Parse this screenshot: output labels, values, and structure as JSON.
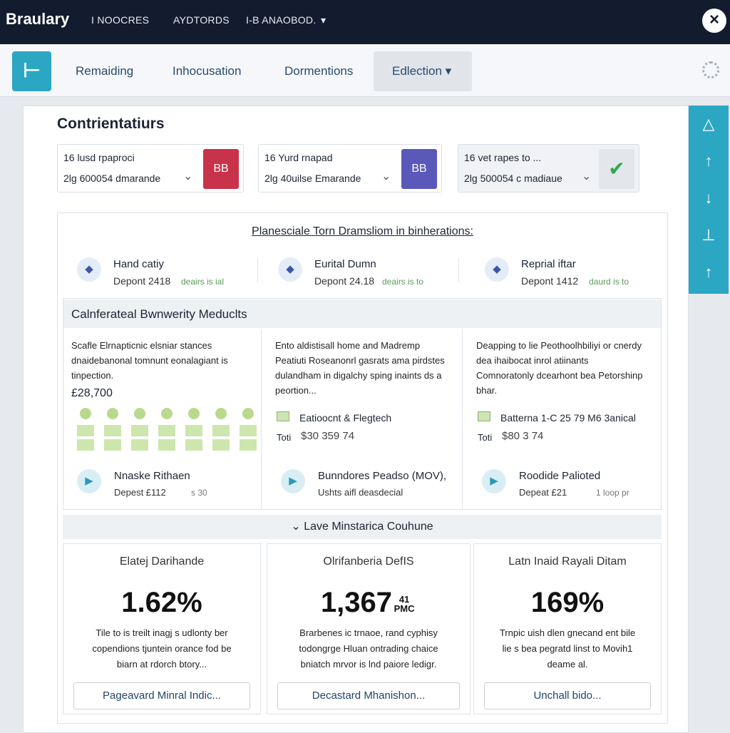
{
  "topbar": {
    "brand": "Braulary",
    "nav": [
      "I NOOCRES",
      "AYDTORDS",
      "I-B ANAOBOD."
    ]
  },
  "tabs": [
    "Remaiding",
    "Inhocusation",
    "Dormentions",
    "Edlection"
  ],
  "page": {
    "title": "Contrientatiurs"
  },
  "filters": [
    {
      "label": "16 lusd rpaproci",
      "value": "2lg 600054 dmarande",
      "badge": "BB"
    },
    {
      "label": "16 Yurd rnapad",
      "value": "2lg 40uilse Emarande",
      "badge": "BB"
    },
    {
      "label": "16 vet rapes to ...",
      "value": "2lg 500054 c madiaue"
    }
  ],
  "panel": {
    "heading": "Planesciale Torn Dramsliom in binherations:",
    "stats": [
      {
        "name": "Hand catiy",
        "detail": "Depont 2418",
        "note": "deairs is ial"
      },
      {
        "name": "Eurital Dumn",
        "detail": "Depont 24.18",
        "note": "deairs is to"
      },
      {
        "name": "Reprial iftar",
        "detail": "Depont 1412",
        "note": "daurd is to"
      }
    ]
  },
  "section": {
    "title": "Calnferateal Bwnwerity Meduclts",
    "columns": [
      {
        "text": "Scafle Elrnapticnic elsniar stances dnaidebanonal tomnunt eonalagiant is tinpection.",
        "amount": "£28,700",
        "footer_name": "Nnaske Rithaen",
        "footer_detail": "Depest £112",
        "footer_note": "s 30"
      },
      {
        "text": "Ento aldistisall home and Madremp Peatiuti Roseanonrl gasrats ama pirdstes dulandham in digalchy sping inaints ds a peortion...",
        "item": "Eatioocnt & Flegtech",
        "total_label": "Toti",
        "total": "$30 359 74",
        "footer_name": "Bunndores Peadso (MOV),",
        "footer_detail": "Ushts aifl deasdecial"
      },
      {
        "text": "Deapping to lie Peothoolhbiliyi or cnerdy dea ihaibocat inrol atiinants Comnoratonly dcearhont bea Petorshinp bhar.",
        "item": "Batterna 1-C 25 79 M6 3anical",
        "total_label": "Toti",
        "total": "$80 3 74",
        "footer_name": "Roodide Palioted",
        "footer_detail": "Depeat £21",
        "footer_note": "1 loop pr"
      }
    ]
  },
  "divider": "Lave Minstarica Couhune",
  "metrics": [
    {
      "title": "Elatej Darihande",
      "value": "1.62%",
      "text": "Tile to is treilt inagj s udlonty ber copendions tjuntein orance fod be biarn at rdorch btory...",
      "button": "Pageavard Minral Indic..."
    },
    {
      "title": "Olrifanberia DefIS",
      "value": "1,367",
      "suffix": "41 PMC",
      "text": "Brarbenes ic trnaoe, rand cyphisy todongrge Hluan ontrading chaice bniatch mrvor is lnd paiore ledigr.",
      "button": "Decastard Mhanishon..."
    },
    {
      "title": "Latn Inaid Rayali Ditam",
      "value": "169%",
      "text": "Trnpic uish dlen gnecand ent bile lie s bea pegratd linst to Movih1 deame al.",
      "button": "Unchall bido..."
    }
  ]
}
